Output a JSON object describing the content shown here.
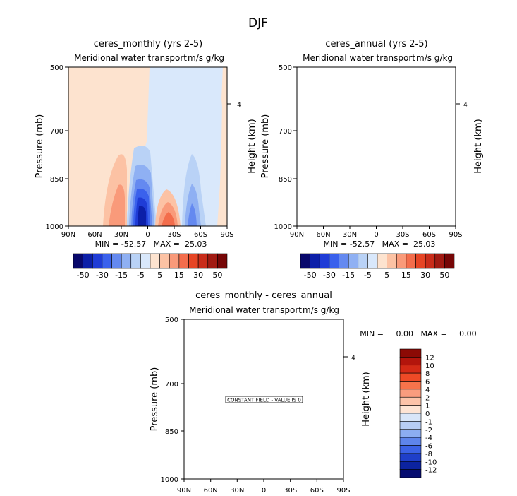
{
  "figure": {
    "title": "DJF"
  },
  "chart_data": [
    {
      "type": "heatmap",
      "title": "ceres_monthly (yrs 2-5)",
      "subtitle_left": "Meridional water transport",
      "subtitle_right": "m/s g/kg",
      "xlabel": "",
      "ylabel": "Pressure (mb)",
      "ylabel_right": "Height (km)",
      "x_ticks": [
        "90N",
        "60N",
        "30N",
        "0",
        "30S",
        "60S",
        "90S"
      ],
      "y_ticks": [
        "500",
        "700",
        "850",
        "1000"
      ],
      "y_right_ticks": [
        "4"
      ],
      "stats": "MIN = -52.57   MAX =  25.03",
      "colorbar_ticks": [
        "-50",
        "-30",
        "-15",
        "-5",
        "5",
        "15",
        "30",
        "50"
      ]
    },
    {
      "type": "heatmap",
      "title": "ceres_annual (yrs 2-5)",
      "subtitle_left": "Meridional water transport",
      "subtitle_right": "m/s g/kg",
      "xlabel": "",
      "ylabel": "Pressure (mb)",
      "ylabel_right": "Height (km)",
      "x_ticks": [
        "90N",
        "60N",
        "30N",
        "0",
        "30S",
        "60S",
        "90S"
      ],
      "y_ticks": [
        "500",
        "700",
        "850",
        "1000"
      ],
      "y_right_ticks": [
        "4"
      ],
      "stats": "MIN = -52.57   MAX =  25.03",
      "colorbar_ticks": [
        "-50",
        "-30",
        "-15",
        "-5",
        "5",
        "15",
        "30",
        "50"
      ]
    },
    {
      "type": "heatmap",
      "title": "ceres_monthly - ceres_annual",
      "subtitle_left": "Meridional water transport",
      "subtitle_right": "m/s g/kg",
      "xlabel": "",
      "ylabel": "Pressure (mb)",
      "ylabel_right": "Height (km)",
      "x_ticks": [
        "90N",
        "60N",
        "30N",
        "0",
        "30S",
        "60S",
        "90S"
      ],
      "y_ticks": [
        "500",
        "700",
        "850",
        "1000"
      ],
      "y_right_ticks": [
        "4"
      ],
      "stats": "MIN =     0.00   MAX =     0.00",
      "annotation": "CONSTANT FIELD - VALUE IS 0",
      "colorbar_ticks": [
        "12",
        "10",
        "8",
        "6",
        "4",
        "2",
        "1",
        "0",
        "-1",
        "-2",
        "-4",
        "-6",
        "-8",
        "-10",
        "-12"
      ]
    }
  ],
  "colors": {
    "abs_palette": [
      "#08086b",
      "#0c1fa8",
      "#1f3cd6",
      "#3a61ec",
      "#6489f0",
      "#8fb0f3",
      "#b9d2f6",
      "#d9e8fb",
      "#fde3cf",
      "#fcc2a4",
      "#f99a7a",
      "#f36d4c",
      "#e64525",
      "#c92c1a",
      "#a11a12",
      "#760606"
    ],
    "diff_palette": [
      "#8c0a05",
      "#b3150c",
      "#d42a16",
      "#ee4a26",
      "#f7734b",
      "#f99c7e",
      "#fcc3a9",
      "#fde4d4",
      "#d8e6f9",
      "#b7cdf4",
      "#8cadf1",
      "#5e85ec",
      "#3b62e6",
      "#1f3fc9",
      "#0c23a0",
      "#050c70"
    ]
  }
}
